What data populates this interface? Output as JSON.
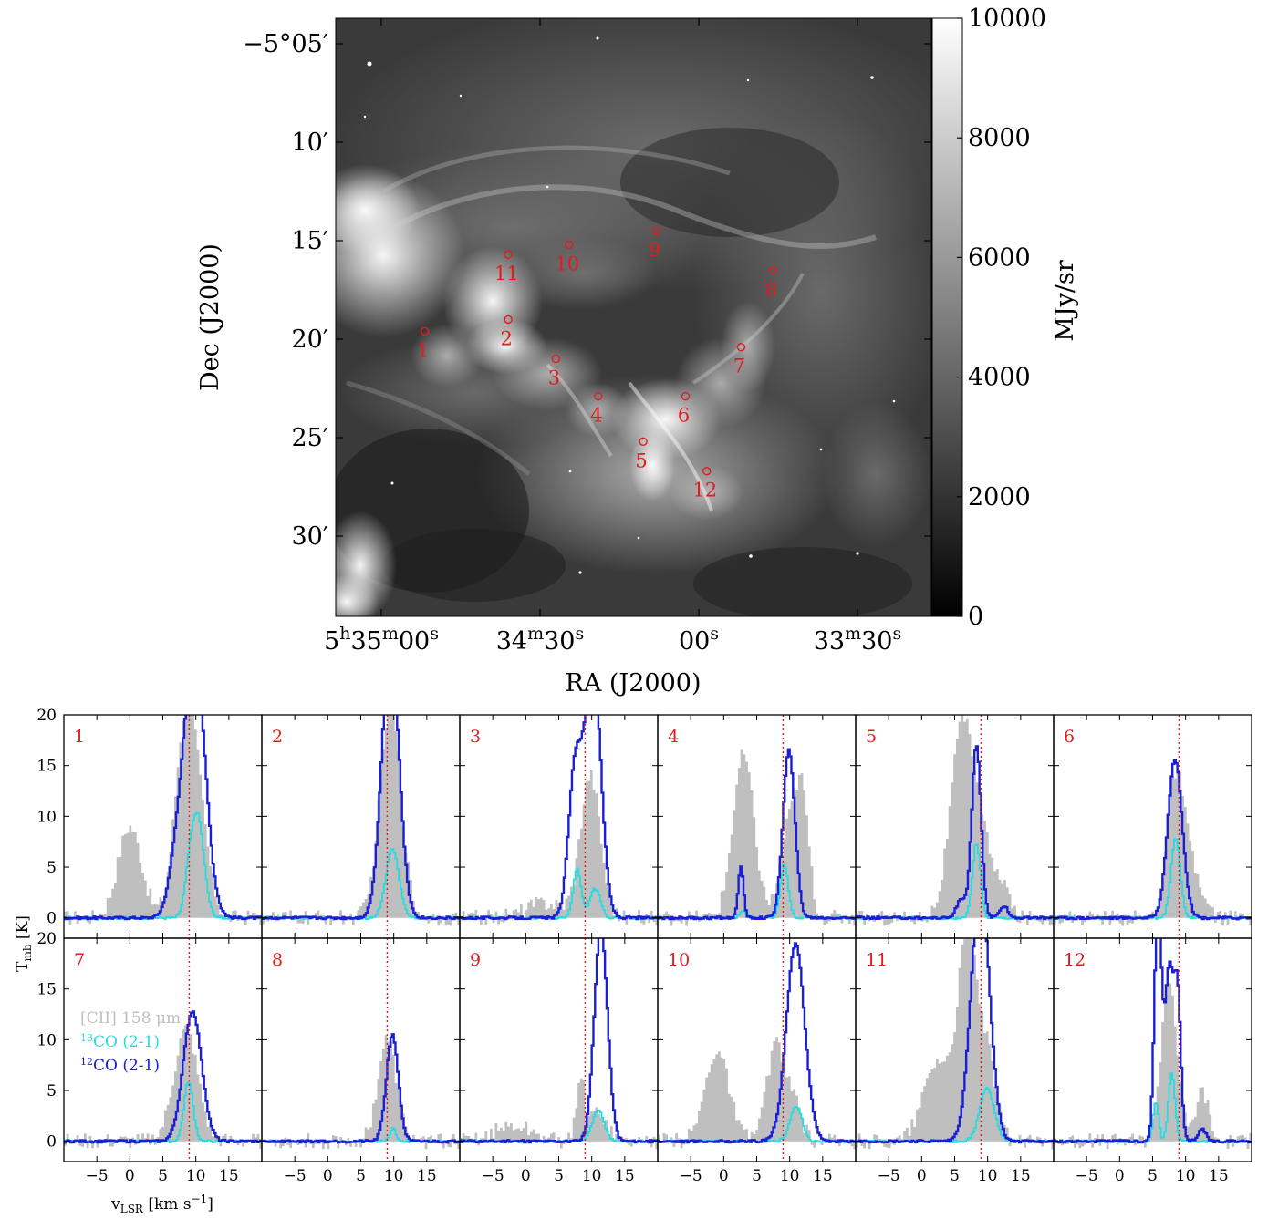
{
  "colors": {
    "cii": "#bfbfbf",
    "co13": "#22dde2",
    "co12": "#1a1fd6",
    "marker": "#e41a1c",
    "vline": "#e41a1c"
  },
  "map": {
    "ylabel": "Dec (J2000)",
    "xlabel": "RA (J2000)",
    "yticks": [
      {
        "label": "−5°05′",
        "value": 5
      },
      {
        "label": "10′",
        "value": 10
      },
      {
        "label": "15′",
        "value": 15
      },
      {
        "label": "20′",
        "value": 20
      },
      {
        "label": "25′",
        "value": 25
      },
      {
        "label": "30′",
        "value": 30
      }
    ],
    "xticks": [
      {
        "base": "5",
        "sup1": "h",
        "mid": "35",
        "sup2": "m",
        "end": "00",
        "sup3": "s",
        "value": 0
      },
      {
        "base": "34",
        "sup1": "m",
        "mid": "30",
        "sup2": "s",
        "value": 30
      },
      {
        "base": "00",
        "sup1": "s",
        "value": 60
      },
      {
        "base": "33",
        "sup1": "m",
        "mid": "30",
        "sup2": "s",
        "value": 90
      }
    ],
    "colorbar": {
      "label": "MJy/sr",
      "ticks": [
        "0",
        "2000",
        "4000",
        "6000",
        "8000",
        "10000"
      ],
      "range": [
        0,
        10000
      ]
    },
    "positions": [
      {
        "label": "1",
        "ra_s": 8.2,
        "dec_m": 19.6
      },
      {
        "label": "2",
        "ra_s": 24.0,
        "dec_m": 19.0
      },
      {
        "label": "3",
        "ra_s": 33.0,
        "dec_m": 21.0
      },
      {
        "label": "4",
        "ra_s": 41.0,
        "dec_m": 22.9
      },
      {
        "label": "5",
        "ra_s": 49.5,
        "dec_m": 25.2
      },
      {
        "label": "6",
        "ra_s": 57.5,
        "dec_m": 22.9
      },
      {
        "label": "7",
        "ra_s": 68.0,
        "dec_m": 20.4
      },
      {
        "label": "8",
        "ra_s": 74.0,
        "dec_m": 16.5
      },
      {
        "label": "9",
        "ra_s": 52.0,
        "dec_m": 14.5
      },
      {
        "label": "10",
        "ra_s": 35.5,
        "dec_m": 15.2
      },
      {
        "label": "11",
        "ra_s": 24.0,
        "dec_m": 15.7
      },
      {
        "label": "12",
        "ra_s": 61.5,
        "dec_m": 26.7
      }
    ]
  },
  "spectra": {
    "ylabel": "T",
    "ylabel_sub": "mb",
    "ylabel_unit": " [K]",
    "xlabel": "v",
    "xlabel_sub": "LSR",
    "xlabel_unit": " [km s",
    "xlabel_unit_sup": "−1",
    "xlabel_end": "]",
    "xticks": [
      "−5",
      "0",
      "5",
      "10",
      "15"
    ],
    "yticks": [
      "0",
      "5",
      "10",
      "15",
      "20"
    ],
    "legend": {
      "cii": "[CII] 158 μm",
      "co13_sup": "13",
      "co13": "CO (2-1)",
      "co12_sup": "12",
      "co12": "CO (2-1)"
    }
  },
  "chart_data": [
    {
      "type": "heatmap",
      "title": "",
      "xlabel": "RA (J2000)",
      "ylabel": "Dec (J2000)",
      "colorbar_label": "MJy/sr",
      "colorbar_range": [
        0,
        10000
      ],
      "markers": [
        "1",
        "2",
        "3",
        "4",
        "5",
        "6",
        "7",
        "8",
        "9",
        "10",
        "11",
        "12"
      ]
    },
    {
      "type": "line",
      "xlabel": "vLSR [km s−1]",
      "ylabel": "Tmb [K]",
      "xlim": [
        -10,
        20
      ],
      "ylim": [
        -2,
        20
      ],
      "vline": 9.0,
      "series_names": [
        "[CII] 158 μm",
        "13CO (2-1)",
        "12CO (2-1)"
      ],
      "panels": [
        {
          "label": "1",
          "cii": [
            {
              "c": 0,
              "a": 9,
              "w": 1.8
            },
            {
              "c": 8.5,
              "a": 19.5,
              "w": 1.6
            },
            {
              "c": 10.8,
              "a": 6,
              "w": 1.5
            }
          ],
          "co13": [
            {
              "c": 10.2,
              "a": 10.3,
              "w": 1.0
            },
            {
              "c": 8.8,
              "a": 2,
              "w": 0.6
            }
          ],
          "co12": [
            {
              "c": 9.8,
              "a": 26,
              "w": 1.6
            },
            {
              "c": 7,
              "a": 4,
              "w": 1.2
            }
          ]
        },
        {
          "label": "2",
          "cii": [
            {
              "c": 9.5,
              "a": 21,
              "w": 1.6
            }
          ],
          "co13": [
            {
              "c": 9.8,
              "a": 6.8,
              "w": 1.0
            }
          ],
          "co12": [
            {
              "c": 9.5,
              "a": 27,
              "w": 1.3
            }
          ]
        },
        {
          "label": "3",
          "cii": [
            {
              "c": 9.8,
              "a": 14,
              "w": 1.5
            },
            {
              "c": 3,
              "a": 1.5,
              "w": 3
            }
          ],
          "co13": [
            {
              "c": 7.8,
              "a": 4.8,
              "w": 0.6
            },
            {
              "c": 10.5,
              "a": 2.9,
              "w": 0.8
            }
          ],
          "co12": [
            {
              "c": 7.5,
              "a": 14.5,
              "w": 1.0
            },
            {
              "c": 10.2,
              "a": 25,
              "w": 1.2
            }
          ]
        },
        {
          "label": "4",
          "cii": [
            {
              "c": 3,
              "a": 16,
              "w": 1.6
            },
            {
              "c": 10,
              "a": 9,
              "w": 1.4
            },
            {
              "c": 12,
              "a": 10,
              "w": 1.0
            }
          ],
          "co13": [
            {
              "c": 9.2,
              "a": 5.2,
              "w": 0.6
            },
            {
              "c": 3,
              "a": 0.8,
              "w": 0.5
            }
          ],
          "co12": [
            {
              "c": 9.9,
              "a": 16.5,
              "w": 0.9
            },
            {
              "c": 2.6,
              "a": 5,
              "w": 0.4
            }
          ]
        },
        {
          "label": "5",
          "cii": [
            {
              "c": 6.2,
              "a": 19,
              "w": 1.8
            },
            {
              "c": 9.5,
              "a": 6,
              "w": 1.5
            },
            {
              "c": 12.5,
              "a": 3,
              "w": 0.8
            }
          ],
          "co13": [
            {
              "c": 8.3,
              "a": 7.4,
              "w": 0.6
            }
          ],
          "co12": [
            {
              "c": 8.3,
              "a": 17,
              "w": 0.7
            },
            {
              "c": 6,
              "a": 1.8,
              "w": 0.7
            },
            {
              "c": 12.5,
              "a": 1.2,
              "w": 0.6
            }
          ]
        },
        {
          "label": "6",
          "cii": [
            {
              "c": 8.5,
              "a": 13.5,
              "w": 1.3
            },
            {
              "c": 11,
              "a": 4,
              "w": 1.5
            }
          ],
          "co13": [
            {
              "c": 8.5,
              "a": 7.8,
              "w": 0.7
            }
          ],
          "co12": [
            {
              "c": 8.4,
              "a": 15.6,
              "w": 1.1
            }
          ]
        },
        {
          "label": "7",
          "cii": [
            {
              "c": 8.5,
              "a": 11,
              "w": 1.8
            }
          ],
          "co13": [
            {
              "c": 8.9,
              "a": 5.9,
              "w": 0.7
            }
          ],
          "co12": [
            {
              "c": 9.5,
              "a": 12.8,
              "w": 1.4
            }
          ]
        },
        {
          "label": "8",
          "cii": [
            {
              "c": 9,
              "a": 10,
              "w": 1.4
            }
          ],
          "co13": [
            {
              "c": 9.9,
              "a": 1.2,
              "w": 0.5
            }
          ],
          "co12": [
            {
              "c": 9.8,
              "a": 10.5,
              "w": 0.9
            }
          ]
        },
        {
          "label": "9",
          "cii": [
            {
              "c": 11,
              "a": 3,
              "w": 1.3
            },
            {
              "c": 8.3,
              "a": 6.5,
              "w": 0.6
            },
            {
              "c": -2,
              "a": 1.5,
              "w": 3
            }
          ],
          "co13": [
            {
              "c": 11,
              "a": 3,
              "w": 0.9
            }
          ],
          "co12": [
            {
              "c": 11.4,
              "a": 21,
              "w": 1.0
            }
          ]
        },
        {
          "label": "10",
          "cii": [
            {
              "c": -1,
              "a": 9,
              "w": 1.8
            },
            {
              "c": 8,
              "a": 9.5,
              "w": 1.5
            },
            {
              "c": 11,
              "a": 3,
              "w": 1.0
            }
          ],
          "co13": [
            {
              "c": 11,
              "a": 3.5,
              "w": 0.9
            }
          ],
          "co12": [
            {
              "c": 10.9,
              "a": 19.4,
              "w": 1.4
            }
          ]
        },
        {
          "label": "11",
          "cii": [
            {
              "c": 7,
              "a": 20,
              "w": 1.4
            },
            {
              "c": 2.5,
              "a": 8,
              "w": 2.2
            },
            {
              "c": 10,
              "a": 8,
              "w": 1.3
            }
          ],
          "co13": [
            {
              "c": 9.9,
              "a": 5.2,
              "w": 1.1
            }
          ],
          "co12": [
            {
              "c": 8.9,
              "a": 25,
              "w": 1.4
            }
          ]
        },
        {
          "label": "12",
          "cii": [
            {
              "c": 7.5,
              "a": 16,
              "w": 1.2
            },
            {
              "c": 12.5,
              "a": 5,
              "w": 1.0
            }
          ],
          "co13": [
            {
              "c": 5.5,
              "a": 4,
              "w": 0.4
            },
            {
              "c": 7.9,
              "a": 6.6,
              "w": 0.5
            }
          ],
          "co12": [
            {
              "c": 5.8,
              "a": 24,
              "w": 0.5
            },
            {
              "c": 7.5,
              "a": 17,
              "w": 0.7
            },
            {
              "c": 8.8,
              "a": 13,
              "w": 0.5
            },
            {
              "c": 12.5,
              "a": 1.2,
              "w": 0.6
            }
          ]
        }
      ]
    }
  ]
}
